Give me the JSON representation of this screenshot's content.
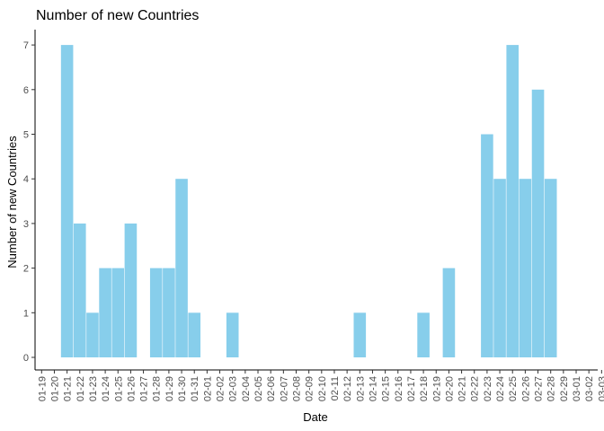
{
  "chart_data": {
    "type": "bar",
    "title": "Number of new Countries",
    "xlabel": "Date",
    "ylabel": "Number of new Countries",
    "ylim": [
      0,
      7
    ],
    "yticks": [
      0,
      1,
      2,
      3,
      4,
      5,
      6,
      7
    ],
    "grid": false,
    "bar_color": "#87CEEB",
    "categories": [
      "01-19",
      "01-20",
      "01-21",
      "01-22",
      "01-23",
      "01-24",
      "01-25",
      "01-26",
      "01-27",
      "01-28",
      "01-29",
      "01-30",
      "01-31",
      "02-01",
      "02-02",
      "02-03",
      "02-04",
      "02-05",
      "02-06",
      "02-07",
      "02-08",
      "02-09",
      "02-10",
      "02-11",
      "02-12",
      "02-13",
      "02-14",
      "02-15",
      "02-16",
      "02-17",
      "02-18",
      "02-19",
      "02-20",
      "02-21",
      "02-22",
      "02-23",
      "02-24",
      "02-25",
      "02-26",
      "02-27",
      "02-28",
      "02-29",
      "03-01",
      "03-02",
      "03-03"
    ],
    "bars": [
      {
        "date": "01-21",
        "value": 7
      },
      {
        "date": "01-22",
        "value": 3
      },
      {
        "date": "01-23",
        "value": 1
      },
      {
        "date": "01-24",
        "value": 2
      },
      {
        "date": "01-25",
        "value": 2
      },
      {
        "date": "01-26",
        "value": 3
      },
      {
        "date": "01-28",
        "value": 2
      },
      {
        "date": "01-29",
        "value": 2
      },
      {
        "date": "01-30",
        "value": 4
      },
      {
        "date": "01-31",
        "value": 1
      },
      {
        "date": "02-03",
        "value": 1
      },
      {
        "date": "02-13",
        "value": 1
      },
      {
        "date": "02-18",
        "value": 1
      },
      {
        "date": "02-20",
        "value": 2
      },
      {
        "date": "02-23",
        "value": 5
      },
      {
        "date": "02-24",
        "value": 4
      },
      {
        "date": "02-25",
        "value": 7
      },
      {
        "date": "02-26",
        "value": 4
      },
      {
        "date": "02-27",
        "value": 6
      },
      {
        "date": "02-28",
        "value": 4
      }
    ]
  }
}
